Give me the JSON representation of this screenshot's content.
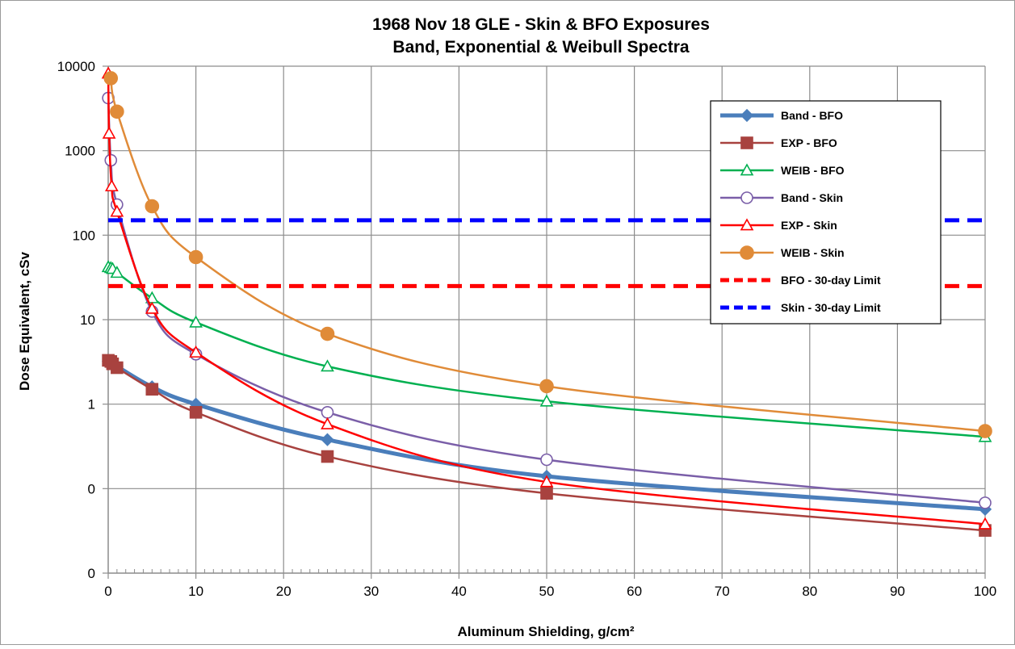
{
  "chart_data": {
    "type": "line",
    "title_lines": [
      "1968 Nov 18 GLE - Skin & BFO Exposures",
      "Band, Exponential & Weibull Spectra"
    ],
    "xlabel": "Aluminum Shielding, g/cm²",
    "ylabel": "Dose Equivalent, cSv",
    "x_scale": "linear",
    "y_scale": "log",
    "xlim": [
      0,
      100
    ],
    "ylim": [
      0.01,
      10000
    ],
    "x_ticks": [
      0,
      10,
      20,
      30,
      40,
      50,
      60,
      70,
      80,
      90,
      100
    ],
    "y_ticks": [
      {
        "value": 0.01,
        "label": "0"
      },
      {
        "value": 0.1,
        "label": "0"
      },
      {
        "value": 1,
        "label": "1"
      },
      {
        "value": 10,
        "label": "10"
      },
      {
        "value": 100,
        "label": "100"
      },
      {
        "value": 1000,
        "label": "1000"
      },
      {
        "value": 10000,
        "label": "10000"
      }
    ],
    "grid": true,
    "legend_position": "right",
    "series": [
      {
        "name": "Band - BFO",
        "color": "#4a7ebb",
        "marker": "diamond",
        "filled": true,
        "width": 5,
        "points": [
          [
            0.01,
            3.2
          ],
          [
            0.3,
            3.1
          ],
          [
            0.5,
            3.0
          ],
          [
            1,
            2.8
          ],
          [
            5,
            1.6
          ],
          [
            10,
            1.0
          ],
          [
            25,
            0.38
          ],
          [
            50,
            0.14
          ],
          [
            100,
            0.057
          ]
        ]
      },
      {
        "name": "EXP - BFO",
        "color": "#a8423f",
        "marker": "square",
        "filled": true,
        "width": 2.5,
        "points": [
          [
            0.01,
            3.3
          ],
          [
            0.3,
            3.2
          ],
          [
            0.5,
            3.0
          ],
          [
            1,
            2.7
          ],
          [
            5,
            1.5
          ],
          [
            10,
            0.8
          ],
          [
            25,
            0.24
          ],
          [
            50,
            0.088
          ],
          [
            100,
            0.032
          ]
        ]
      },
      {
        "name": "WEIB - BFO",
        "color": "#00b050",
        "marker": "triangle",
        "filled": false,
        "width": 2.5,
        "points": [
          [
            0.01,
            42
          ],
          [
            0.3,
            41
          ],
          [
            0.5,
            40
          ],
          [
            1,
            36
          ],
          [
            5,
            18
          ],
          [
            10,
            9.3
          ],
          [
            25,
            2.8
          ],
          [
            50,
            1.08
          ],
          [
            100,
            0.41
          ]
        ]
      },
      {
        "name": "Band - Skin",
        "color": "#7a5ea8",
        "marker": "circle",
        "filled": false,
        "width": 2.5,
        "points": [
          [
            0.01,
            4200
          ],
          [
            0.3,
            770
          ],
          [
            1,
            230
          ],
          [
            5,
            12.5
          ],
          [
            10,
            3.9
          ],
          [
            25,
            0.8
          ],
          [
            50,
            0.22
          ],
          [
            100,
            0.068
          ]
        ]
      },
      {
        "name": "EXP - Skin",
        "color": "#ff0000",
        "marker": "triangle",
        "filled": false,
        "width": 2.5,
        "points": [
          [
            0.01,
            8200
          ],
          [
            0.1,
            1600
          ],
          [
            0.4,
            380
          ],
          [
            1,
            190
          ],
          [
            5,
            13.5
          ],
          [
            10,
            4.1
          ],
          [
            25,
            0.58
          ],
          [
            50,
            0.12
          ],
          [
            100,
            0.038
          ]
        ]
      },
      {
        "name": "WEIB - Skin",
        "color": "#e08b38",
        "marker": "circle",
        "filled": true,
        "width": 2.5,
        "points": [
          [
            0.3,
            7200
          ],
          [
            1,
            2900
          ],
          [
            5,
            220
          ],
          [
            10,
            55
          ],
          [
            25,
            6.8
          ],
          [
            50,
            1.63
          ],
          [
            100,
            0.48
          ]
        ]
      },
      {
        "name": "BFO - 30-day Limit",
        "color": "#ff0000",
        "marker": "none",
        "dashed": true,
        "width": 5,
        "points": [
          [
            0,
            25
          ],
          [
            100,
            25
          ]
        ]
      },
      {
        "name": "Skin - 30-day Limit",
        "color": "#0000ff",
        "marker": "none",
        "dashed": true,
        "width": 5,
        "points": [
          [
            0,
            150
          ],
          [
            100,
            150
          ]
        ]
      }
    ]
  }
}
